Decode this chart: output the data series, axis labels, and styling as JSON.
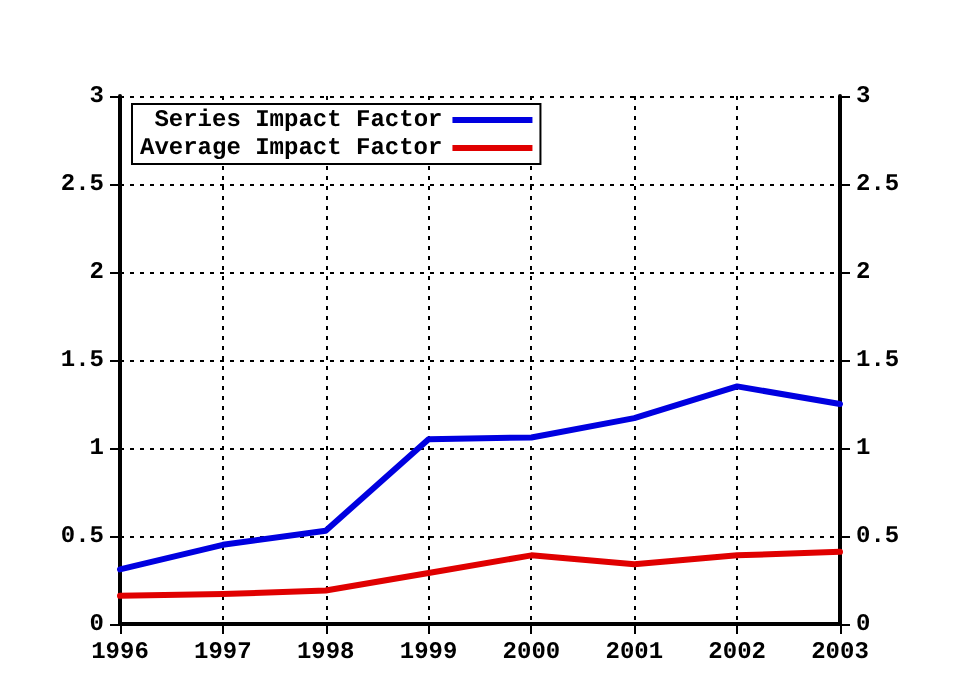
{
  "chart_data": {
    "type": "line",
    "x": [
      1996,
      1997,
      1998,
      1999,
      2000,
      2001,
      2002,
      2003
    ],
    "series": [
      {
        "name": "Series Impact Factor",
        "color": "#0000e0",
        "values": [
          0.31,
          0.45,
          0.53,
          1.05,
          1.06,
          1.17,
          1.35,
          1.25
        ]
      },
      {
        "name": "Average Impact Factor",
        "color": "#e00000",
        "values": [
          0.16,
          0.17,
          0.19,
          0.29,
          0.39,
          0.34,
          0.39,
          0.41
        ]
      }
    ],
    "xlim": [
      1996,
      2003
    ],
    "xticks": [
      1996,
      1997,
      1998,
      1999,
      2000,
      2001,
      2002,
      2003
    ],
    "ylim": [
      0,
      3
    ],
    "yticks": [
      0,
      0.5,
      1,
      1.5,
      2,
      2.5,
      3
    ],
    "y2lim": [
      0,
      3
    ],
    "y2ticks": [
      0,
      0.5,
      1,
      1.5,
      2,
      2.5,
      3
    ],
    "grid": true,
    "legend": "top left",
    "marker": "none",
    "line_style": "solid"
  }
}
